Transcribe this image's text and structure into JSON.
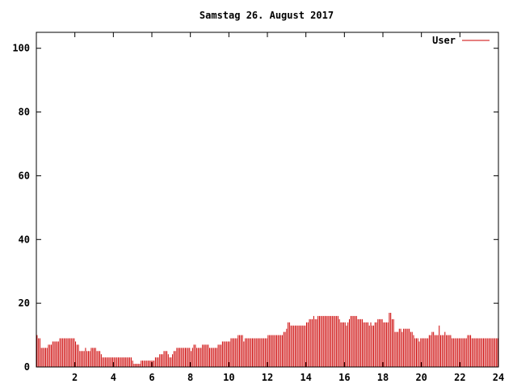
{
  "chart_data": {
    "type": "bar",
    "title": "Samstag 26. August 2017",
    "xlabel": "",
    "ylabel": "",
    "xlim": [
      0,
      24
    ],
    "ylim": [
      0,
      105
    ],
    "xticks": [
      "2",
      "4",
      "6",
      "8",
      "10",
      "12",
      "14",
      "16",
      "18",
      "20",
      "22",
      "24"
    ],
    "yticks": [
      "0",
      "20",
      "40",
      "60",
      "80",
      "100"
    ],
    "grid": false,
    "legend": "top-right",
    "series": [
      {
        "name": "User",
        "color": "#cc0000",
        "values": [
          10,
          9,
          9,
          6,
          6,
          6,
          6,
          6,
          7,
          7,
          7,
          8,
          8,
          8,
          8,
          8,
          9,
          9,
          9,
          9,
          9,
          9,
          9,
          9,
          9,
          9,
          9,
          8,
          7,
          7,
          5,
          5,
          5,
          5,
          6,
          5,
          5,
          5,
          6,
          6,
          6,
          6,
          5,
          5,
          5,
          4,
          3,
          3,
          3,
          3,
          3,
          3,
          3,
          3,
          3,
          3,
          3,
          3,
          3,
          3,
          3,
          3,
          3,
          3,
          3,
          3,
          3,
          2,
          1,
          1,
          1,
          1,
          1,
          2,
          2,
          2,
          2,
          2,
          2,
          2,
          2,
          2,
          2,
          3,
          3,
          3,
          4,
          4,
          4,
          5,
          5,
          5,
          4,
          3,
          3,
          4,
          5,
          5,
          6,
          6,
          6,
          6,
          6,
          6,
          6,
          6,
          6,
          6,
          5,
          6,
          7,
          7,
          6,
          6,
          6,
          6,
          7,
          7,
          7,
          7,
          7,
          6,
          6,
          6,
          6,
          6,
          6,
          7,
          7,
          7,
          8,
          8,
          8,
          8,
          8,
          8,
          9,
          9,
          9,
          9,
          9,
          10,
          10,
          10,
          10,
          8,
          9,
          9,
          9,
          9,
          9,
          9,
          9,
          9,
          9,
          9,
          9,
          9,
          9,
          9,
          9,
          9,
          10,
          10,
          10,
          10,
          10,
          10,
          10,
          10,
          10,
          10,
          10,
          11,
          11,
          12,
          14,
          14,
          13,
          13,
          13,
          13,
          13,
          13,
          13,
          13,
          13,
          13,
          13,
          14,
          14,
          15,
          15,
          15,
          16,
          15,
          15,
          16,
          16,
          16,
          16,
          16,
          16,
          16,
          16,
          16,
          16,
          16,
          16,
          16,
          16,
          16,
          15,
          14,
          14,
          14,
          14,
          13,
          14,
          15,
          16,
          16,
          16,
          16,
          16,
          15,
          15,
          15,
          15,
          14,
          14,
          14,
          14,
          13,
          14,
          13,
          13,
          14,
          14,
          15,
          15,
          15,
          15,
          14,
          14,
          14,
          14,
          17,
          17,
          15,
          15,
          11,
          11,
          11,
          12,
          12,
          11,
          12,
          12,
          12,
          12,
          12,
          11,
          11,
          10,
          9,
          9,
          9,
          8,
          9,
          9,
          9,
          9,
          9,
          9,
          10,
          10,
          11,
          11,
          10,
          10,
          10,
          13,
          10,
          10,
          10,
          11,
          10,
          10,
          10,
          10,
          9,
          9,
          9,
          9,
          9,
          9,
          9,
          9,
          9,
          9,
          9,
          10,
          10,
          10,
          9,
          9,
          9,
          9,
          9,
          9,
          9,
          9,
          9,
          9,
          9,
          9,
          9,
          9,
          9,
          9,
          9,
          9,
          9
        ]
      }
    ]
  }
}
